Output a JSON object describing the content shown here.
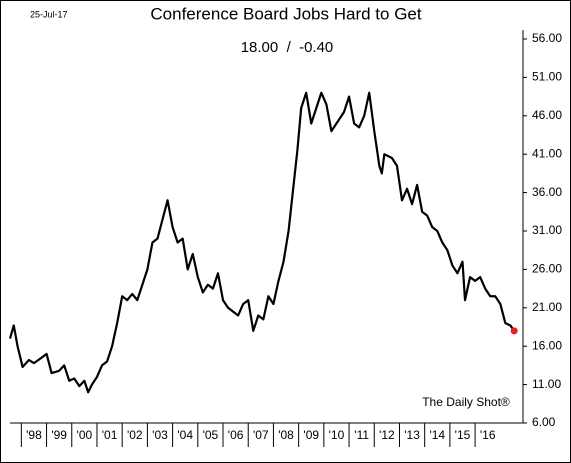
{
  "chart_data": {
    "type": "line",
    "date_label": "25-Jul-17",
    "title": "Conference Board Jobs Hard to Get",
    "subtitle": "18.00  /  -0.40",
    "source": "The Daily Shot®",
    "color": "#000000",
    "last_point_color": "#e8211a",
    "x": [
      1997.55,
      1997.7,
      1997.85,
      1998.05,
      1998.3,
      1998.5,
      1998.8,
      1999.0,
      1999.2,
      1999.5,
      1999.7,
      1999.9,
      2000.1,
      2000.3,
      2000.5,
      2000.65,
      2000.8,
      2001.0,
      2001.2,
      2001.4,
      2001.6,
      2001.8,
      2002.0,
      2002.2,
      2002.4,
      2002.6,
      2002.8,
      2003.0,
      2003.2,
      2003.4,
      2003.6,
      2003.8,
      2004.0,
      2004.2,
      2004.4,
      2004.6,
      2004.8,
      2005.0,
      2005.2,
      2005.4,
      2005.6,
      2005.8,
      2006.0,
      2006.2,
      2006.4,
      2006.6,
      2006.8,
      2007.0,
      2007.2,
      2007.4,
      2007.6,
      2007.8,
      2008.0,
      2008.2,
      2008.4,
      2008.6,
      2008.8,
      2008.95,
      2009.1,
      2009.3,
      2009.5,
      2009.7,
      2009.9,
      2010.1,
      2010.3,
      2010.5,
      2010.8,
      2011.0,
      2011.2,
      2011.4,
      2011.6,
      2011.8,
      2012.0,
      2012.2,
      2012.3,
      2012.4,
      2012.7,
      2012.9,
      2013.1,
      2013.3,
      2013.5,
      2013.7,
      2013.9,
      2014.1,
      2014.3,
      2014.5,
      2014.7,
      2014.9,
      2015.1,
      2015.3,
      2015.5,
      2015.6,
      2015.8,
      2016.0,
      2016.2,
      2016.4,
      2016.6,
      2016.8,
      2017.0,
      2017.2,
      2017.4,
      2017.55
    ],
    "values": [
      17.0,
      18.7,
      16.0,
      13.3,
      14.2,
      13.8,
      14.5,
      15.0,
      12.5,
      12.8,
      13.5,
      11.5,
      11.8,
      10.8,
      11.5,
      10.0,
      11.0,
      12.0,
      13.5,
      14.0,
      16.0,
      19.0,
      22.5,
      22.0,
      22.8,
      22.0,
      24.0,
      26.0,
      29.5,
      30.0,
      32.5,
      35.0,
      31.5,
      29.5,
      30.0,
      26.0,
      28.0,
      25.0,
      23.0,
      24.0,
      23.5,
      25.5,
      22.0,
      21.0,
      20.5,
      20.0,
      21.5,
      22.0,
      18.0,
      20.0,
      19.5,
      22.5,
      21.5,
      24.5,
      27.0,
      31.0,
      37.0,
      41.5,
      47.0,
      49.0,
      45.0,
      47.0,
      49.0,
      47.5,
      44.0,
      45.0,
      46.5,
      48.5,
      45.0,
      44.5,
      46.0,
      49.0,
      44.0,
      39.5,
      38.5,
      41.0,
      40.5,
      39.5,
      35.0,
      36.5,
      34.5,
      37.0,
      33.5,
      33.0,
      31.5,
      31.0,
      29.5,
      28.5,
      26.5,
      25.5,
      27.0,
      22.0,
      25.0,
      24.5,
      25.0,
      23.5,
      22.5,
      22.5,
      21.5,
      19.0,
      18.7,
      18.0
    ],
    "xlim": [
      1997.55,
      2017.9
    ],
    "xticks": [
      {
        "value": 1998,
        "label": "'98"
      },
      {
        "value": 1999,
        "label": "'99"
      },
      {
        "value": 2000,
        "label": "'00"
      },
      {
        "value": 2001,
        "label": "'01"
      },
      {
        "value": 2002,
        "label": "'02"
      },
      {
        "value": 2003,
        "label": "'03"
      },
      {
        "value": 2004,
        "label": "'04"
      },
      {
        "value": 2005,
        "label": "'05"
      },
      {
        "value": 2006,
        "label": "'06"
      },
      {
        "value": 2007,
        "label": "'07"
      },
      {
        "value": 2008,
        "label": "'08"
      },
      {
        "value": 2009,
        "label": "'09"
      },
      {
        "value": 2010,
        "label": "'10"
      },
      {
        "value": 2011,
        "label": "'11"
      },
      {
        "value": 2012,
        "label": "'12"
      },
      {
        "value": 2013,
        "label": "'13"
      },
      {
        "value": 2014,
        "label": "'14"
      },
      {
        "value": 2015,
        "label": "'15"
      },
      {
        "value": 2016,
        "label": "'16"
      }
    ],
    "ylim": [
      6,
      56
    ],
    "yticks": [
      {
        "value": 6,
        "label": "6.00"
      },
      {
        "value": 11,
        "label": "11.00"
      },
      {
        "value": 16,
        "label": "16.00"
      },
      {
        "value": 21,
        "label": "21.00"
      },
      {
        "value": 26,
        "label": "26.00"
      },
      {
        "value": 31,
        "label": "31.00"
      },
      {
        "value": 36,
        "label": "36.00"
      },
      {
        "value": 41,
        "label": "41.00"
      },
      {
        "value": 46,
        "label": "46.00"
      },
      {
        "value": 51,
        "label": "51.00"
      },
      {
        "value": 56,
        "label": "56.00"
      }
    ],
    "grid": false
  }
}
